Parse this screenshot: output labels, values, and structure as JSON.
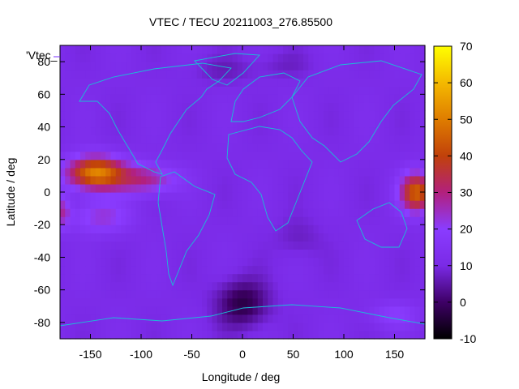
{
  "chart_data": {
    "type": "heatmap",
    "title": "VTEC / TECU 20211003_276.85500",
    "xlabel": "Longitude / deg",
    "ylabel": "Latitude / deg",
    "series_label": "'Vtec_",
    "xlim": [
      -180,
      180
    ],
    "ylim": [
      -90,
      90
    ],
    "x_ticks": [
      -150,
      -100,
      -50,
      0,
      50,
      100,
      150
    ],
    "y_ticks": [
      -80,
      -60,
      -40,
      -20,
      0,
      20,
      40,
      60,
      80
    ],
    "colorbar": {
      "min": -10,
      "max": 70,
      "ticks": [
        -10,
        0,
        10,
        20,
        30,
        40,
        50,
        60,
        70
      ]
    },
    "base_value": 11,
    "features": [
      {
        "lon": -145,
        "lat": 12,
        "lon_spread": 28,
        "lat_spread": 10,
        "amplitude": 40
      },
      {
        "lon": -95,
        "lat": 8,
        "lon_spread": 30,
        "lat_spread": 9,
        "amplitude": 18
      },
      {
        "lon": -140,
        "lat": -15,
        "lon_spread": 30,
        "lat_spread": 10,
        "amplitude": 12
      },
      {
        "lon": 172,
        "lat": 0,
        "lon_spread": 16,
        "lat_spread": 12,
        "amplitude": 34
      },
      {
        "lon": -178,
        "lat": -12,
        "lon_spread": 8,
        "lat_spread": 10,
        "amplitude": 14
      },
      {
        "lon": 150,
        "lat": -75,
        "lon_spread": 25,
        "lat_spread": 8,
        "amplitude": 8
      },
      {
        "lon": 0,
        "lat": -68,
        "lon_spread": 25,
        "lat_spread": 14,
        "amplitude": -14
      },
      {
        "lon": 55,
        "lat": -28,
        "lon_spread": 22,
        "lat_spread": 12,
        "amplitude": -4
      },
      {
        "lon": -20,
        "lat": 75,
        "lon_spread": 30,
        "lat_spread": 8,
        "amplitude": -4
      },
      {
        "lon": 40,
        "lat": 78,
        "lon_spread": 30,
        "lat_spread": 8,
        "amplitude": -3
      }
    ]
  }
}
